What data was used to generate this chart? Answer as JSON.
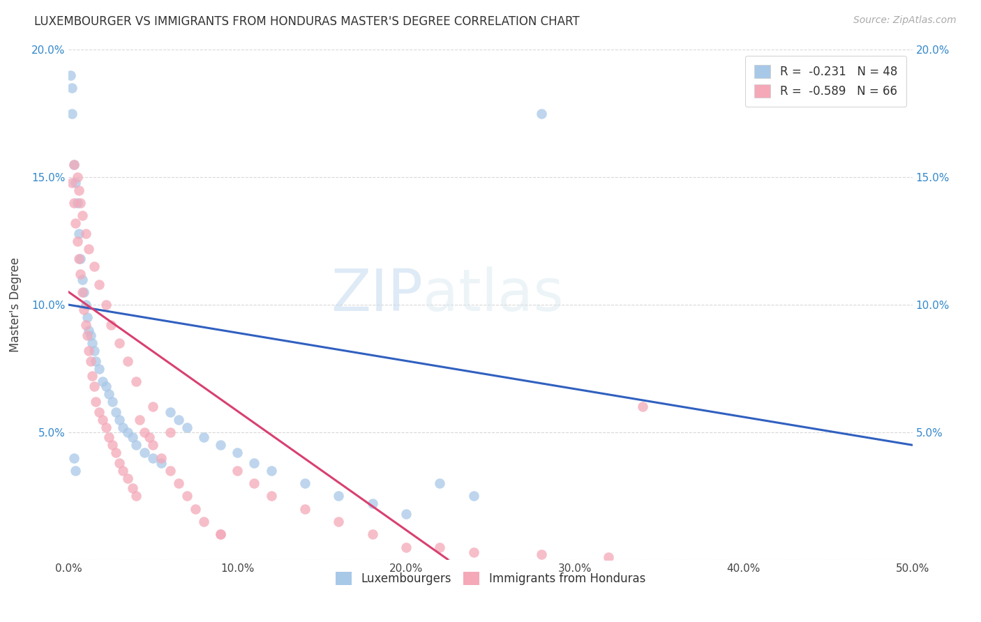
{
  "title": "LUXEMBOURGER VS IMMIGRANTS FROM HONDURAS MASTER'S DEGREE CORRELATION CHART",
  "source": "Source: ZipAtlas.com",
  "ylabel": "Master's Degree",
  "xlim": [
    0.0,
    0.5
  ],
  "ylim": [
    0.0,
    0.2
  ],
  "color_blue": "#a8c8e8",
  "color_pink": "#f4a8b8",
  "color_blue_line": "#3060c0",
  "color_pink_line": "#d84070",
  "color_dashed": "#b0c8e0",
  "legend_R1": "-0.231",
  "legend_N1": "48",
  "legend_R2": "-0.589",
  "legend_N2": "66",
  "lux_x": [
    0.001,
    0.002,
    0.003,
    0.004,
    0.005,
    0.006,
    0.007,
    0.008,
    0.009,
    0.01,
    0.011,
    0.012,
    0.013,
    0.014,
    0.015,
    0.016,
    0.018,
    0.02,
    0.022,
    0.024,
    0.026,
    0.028,
    0.03,
    0.032,
    0.035,
    0.038,
    0.04,
    0.045,
    0.05,
    0.055,
    0.06,
    0.065,
    0.07,
    0.08,
    0.09,
    0.1,
    0.11,
    0.12,
    0.14,
    0.16,
    0.18,
    0.2,
    0.22,
    0.24,
    0.28,
    0.003,
    0.004,
    0.002
  ],
  "lux_y": [
    0.19,
    0.185,
    0.155,
    0.148,
    0.14,
    0.128,
    0.118,
    0.11,
    0.105,
    0.1,
    0.095,
    0.09,
    0.088,
    0.085,
    0.082,
    0.078,
    0.075,
    0.07,
    0.068,
    0.065,
    0.062,
    0.058,
    0.055,
    0.052,
    0.05,
    0.048,
    0.045,
    0.042,
    0.04,
    0.038,
    0.058,
    0.055,
    0.052,
    0.048,
    0.045,
    0.042,
    0.038,
    0.035,
    0.03,
    0.025,
    0.022,
    0.018,
    0.03,
    0.025,
    0.175,
    0.04,
    0.035,
    0.175
  ],
  "hon_x": [
    0.002,
    0.003,
    0.004,
    0.005,
    0.006,
    0.007,
    0.008,
    0.009,
    0.01,
    0.011,
    0.012,
    0.013,
    0.014,
    0.015,
    0.016,
    0.018,
    0.02,
    0.022,
    0.024,
    0.026,
    0.028,
    0.03,
    0.032,
    0.035,
    0.038,
    0.04,
    0.042,
    0.045,
    0.048,
    0.05,
    0.055,
    0.06,
    0.065,
    0.07,
    0.075,
    0.08,
    0.09,
    0.1,
    0.11,
    0.12,
    0.14,
    0.16,
    0.18,
    0.2,
    0.22,
    0.24,
    0.28,
    0.32,
    0.34,
    0.003,
    0.005,
    0.006,
    0.007,
    0.008,
    0.01,
    0.012,
    0.015,
    0.018,
    0.022,
    0.025,
    0.03,
    0.035,
    0.04,
    0.05,
    0.06,
    0.09
  ],
  "hon_y": [
    0.148,
    0.14,
    0.132,
    0.125,
    0.118,
    0.112,
    0.105,
    0.098,
    0.092,
    0.088,
    0.082,
    0.078,
    0.072,
    0.068,
    0.062,
    0.058,
    0.055,
    0.052,
    0.048,
    0.045,
    0.042,
    0.038,
    0.035,
    0.032,
    0.028,
    0.025,
    0.055,
    0.05,
    0.048,
    0.045,
    0.04,
    0.035,
    0.03,
    0.025,
    0.02,
    0.015,
    0.01,
    0.035,
    0.03,
    0.025,
    0.02,
    0.015,
    0.01,
    0.005,
    0.005,
    0.003,
    0.002,
    0.001,
    0.06,
    0.155,
    0.15,
    0.145,
    0.14,
    0.135,
    0.128,
    0.122,
    0.115,
    0.108,
    0.1,
    0.092,
    0.085,
    0.078,
    0.07,
    0.06,
    0.05,
    0.01
  ],
  "watermark_zip": "ZIP",
  "watermark_atlas": "atlas",
  "background_color": "#ffffff",
  "grid_color": "#d8d8d8"
}
